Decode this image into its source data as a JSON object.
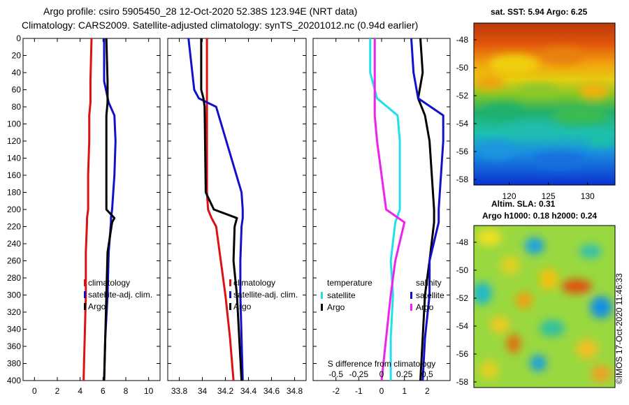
{
  "header": {
    "title_line1": "Argo profile: csiro 5905450_28 12-Oct-2020 52.38S 123.94E (NRT data)",
    "title_line2": "Climatology: CARS2009. Satellite-adjusted climatology: synTS_20201012.nc (0.94d earlier)"
  },
  "colors": {
    "red": "#dd1111",
    "blue": "#1111cc",
    "black": "#000000",
    "cyan": "#22e0e8",
    "magenta": "#ee22ee"
  },
  "chart_data": [
    {
      "type": "line",
      "name": "temperature-profile",
      "xlim": [
        -1,
        11
      ],
      "ylim": [
        400,
        0
      ],
      "xticks": [
        "0",
        "2",
        "4",
        "6",
        "8",
        "10"
      ],
      "yticks": [
        "0",
        "20",
        "40",
        "60",
        "80",
        "100",
        "120",
        "140",
        "160",
        "180",
        "200",
        "220",
        "240",
        "260",
        "280",
        "300",
        "320",
        "340",
        "360",
        "380",
        "400"
      ],
      "y": [
        0,
        50,
        75,
        90,
        120,
        160,
        200,
        210,
        215,
        250,
        300,
        350,
        400
      ],
      "series": [
        {
          "name": "climatology",
          "color": "red",
          "values": [
            5.0,
            4.9,
            4.9,
            4.8,
            4.8,
            4.7,
            4.7,
            4.6,
            4.6,
            4.5,
            4.5,
            4.4,
            4.3
          ]
        },
        {
          "name": "satellite-adj. clim.",
          "color": "blue",
          "values": [
            6.1,
            6.1,
            6.5,
            7.0,
            7.1,
            7.0,
            6.8,
            6.7,
            6.7,
            6.5,
            6.4,
            6.2,
            6.1
          ]
        },
        {
          "name": "Argo",
          "color": "black",
          "values": [
            6.3,
            6.4,
            6.4,
            6.3,
            6.3,
            6.3,
            6.3,
            7.0,
            6.8,
            6.4,
            6.3,
            6.2,
            6.1
          ]
        }
      ],
      "legend": [
        "climatology",
        "satellite-adj. clim.",
        "Argo"
      ]
    },
    {
      "type": "line",
      "name": "salinity-profile",
      "xlim": [
        33.7,
        34.9
      ],
      "ylim": [
        400,
        0
      ],
      "xticks": [
        "33.8",
        "34",
        "34.2",
        "34.4",
        "34.6",
        "34.8"
      ],
      "y": [
        0,
        60,
        70,
        80,
        180,
        200,
        210,
        220,
        260,
        300,
        350,
        400
      ],
      "series": [
        {
          "name": "climatology",
          "color": "red",
          "values": [
            34.04,
            34.04,
            34.04,
            34.04,
            34.04,
            34.05,
            34.08,
            34.12,
            34.16,
            34.2,
            34.24,
            34.27
          ]
        },
        {
          "name": "satellite-adj. clim.",
          "color": "blue",
          "values": [
            33.88,
            33.93,
            33.97,
            34.12,
            34.34,
            34.35,
            34.35,
            34.34,
            34.33,
            34.33,
            34.34,
            34.35
          ]
        },
        {
          "name": "Argo",
          "color": "black",
          "values": [
            33.99,
            33.99,
            34.01,
            34.02,
            34.03,
            34.1,
            34.3,
            34.28,
            34.27,
            34.3,
            34.32,
            34.34
          ]
        }
      ],
      "legend": [
        "climatology",
        "satellite-adj. clim.",
        "Argo"
      ]
    },
    {
      "type": "line",
      "name": "satellite-vs-argo-profile",
      "xlim": [
        -3,
        3
      ],
      "ylim": [
        400,
        0
      ],
      "xticks": [
        "-2",
        "-1",
        "0",
        "1",
        "2"
      ],
      "x2label": "S difference from climatology",
      "x2ticks": [
        "-0.5",
        "-0.25",
        "0",
        "0.25",
        "0.5"
      ],
      "y": [
        0,
        40,
        70,
        90,
        120,
        200,
        215,
        260,
        300,
        350,
        400
      ],
      "series": [
        {
          "name": "temperature satellite",
          "color": "cyan",
          "values": [
            -0.5,
            -0.5,
            -0.2,
            0.7,
            0.8,
            0.8,
            0.6,
            0.4,
            0.5,
            0.4,
            0.4
          ]
        },
        {
          "name": "temperature Argo",
          "color": "black",
          "values": [
            1.7,
            1.8,
            1.6,
            1.9,
            2.1,
            2.3,
            2.3,
            2.1,
            1.9,
            1.8,
            1.7
          ]
        },
        {
          "name": "salinity satellite",
          "color": "blue",
          "values": [
            1.3,
            1.4,
            1.6,
            2.7,
            2.7,
            2.5,
            2.5,
            2.1,
            2.1,
            1.9,
            1.8
          ]
        },
        {
          "name": "salinity Argo",
          "color": "magenta",
          "values": [
            -0.3,
            -0.3,
            -0.3,
            -0.3,
            -0.2,
            0.2,
            1.0,
            0.6,
            0.4,
            0.2,
            0.0
          ]
        }
      ],
      "legend_left": {
        "title": "temperature",
        "items": [
          "satellite",
          "Argo"
        ]
      },
      "legend_right": {
        "title": "salinity",
        "items": [
          "satellite",
          "Argo"
        ]
      }
    }
  ],
  "maps": {
    "sst": {
      "title": "sat. SST: 5.94 Argo: 6.25",
      "yticks": [
        "-48",
        "-50",
        "-52",
        "-54",
        "-56",
        "-58"
      ],
      "xticks": [
        "120",
        "125",
        "130"
      ]
    },
    "sla": {
      "title1": "Altim. SLA: 0.31",
      "title2": "Argo h1000: 0.18 h2000: 0.24",
      "yticks": [
        "-48",
        "-50",
        "-52",
        "-54",
        "-56",
        "-58"
      ]
    }
  },
  "watermark": "©IMOS 17-Oct-2020 11:46:33"
}
